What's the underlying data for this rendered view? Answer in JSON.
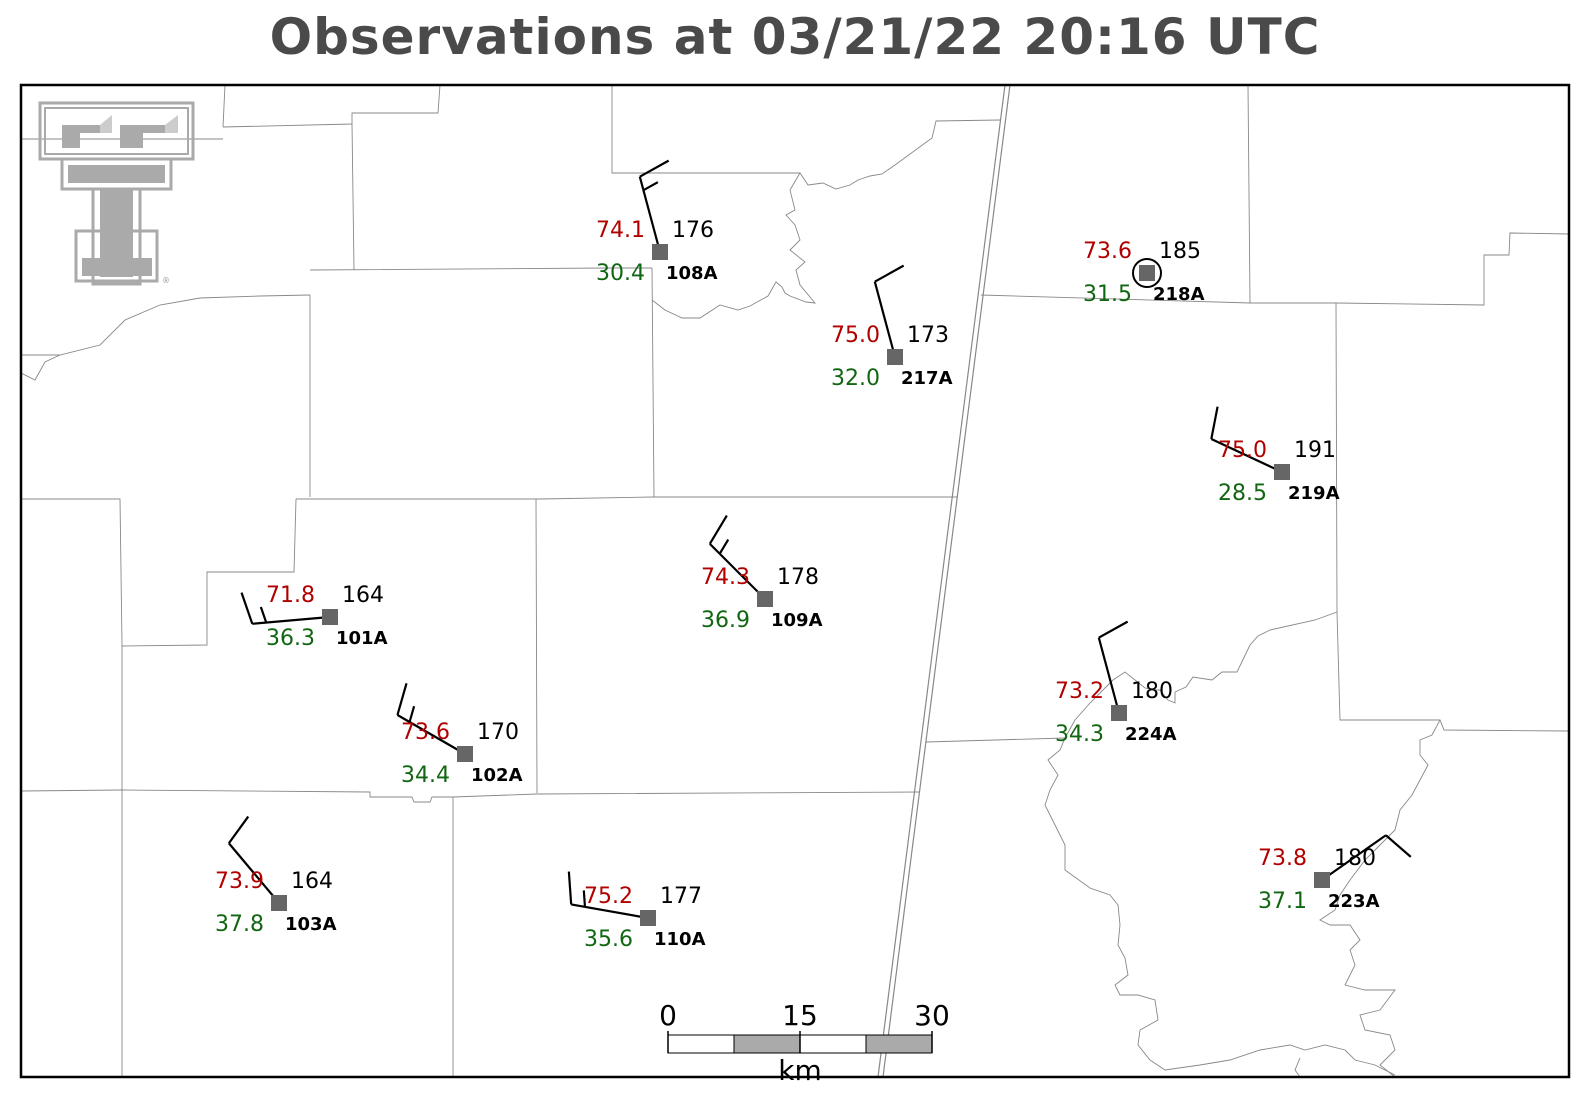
{
  "title": "Observations at 03/21/22 20:16 UTC",
  "logo": {
    "mark": "double-T",
    "registered": "®"
  },
  "colors": {
    "temperature": "#b00000",
    "dewpoint": "#116611",
    "station": "#666666",
    "border": "#888888"
  },
  "stations": [
    {
      "id": "108A",
      "temp": "74.1",
      "dew": "30.4",
      "pres": "176",
      "calm": false,
      "wind_dir_deg": 345,
      "wind_speed_kt": 15
    },
    {
      "id": "218A",
      "temp": "73.6",
      "dew": "31.5",
      "pres": "185",
      "calm": true
    },
    {
      "id": "217A",
      "temp": "75.0",
      "dew": "32.0",
      "pres": "173",
      "calm": false,
      "wind_dir_deg": 345,
      "wind_speed_kt": 10
    },
    {
      "id": "219A",
      "temp": "75.0",
      "dew": "28.5",
      "pres": "191",
      "calm": false,
      "wind_dir_deg": 295,
      "wind_speed_kt": 10
    },
    {
      "id": "101A",
      "temp": "71.8",
      "dew": "36.3",
      "pres": "164",
      "calm": false,
      "wind_dir_deg": 265,
      "wind_speed_kt": 15
    },
    {
      "id": "109A",
      "temp": "74.3",
      "dew": "36.9",
      "pres": "178",
      "calm": false,
      "wind_dir_deg": 315,
      "wind_speed_kt": 15
    },
    {
      "id": "102A",
      "temp": "73.6",
      "dew": "34.4",
      "pres": "170",
      "calm": false,
      "wind_dir_deg": 300,
      "wind_speed_kt": 15
    },
    {
      "id": "224A",
      "temp": "73.2",
      "dew": "34.3",
      "pres": "180",
      "calm": false,
      "wind_dir_deg": 345,
      "wind_speed_kt": 10
    },
    {
      "id": "103A",
      "temp": "73.9",
      "dew": "37.8",
      "pres": "164",
      "calm": false,
      "wind_dir_deg": 320,
      "wind_speed_kt": 10
    },
    {
      "id": "110A",
      "temp": "75.2",
      "dew": "35.6",
      "pres": "177",
      "calm": false,
      "wind_dir_deg": 280,
      "wind_speed_kt": 15
    },
    {
      "id": "223A",
      "temp": "73.8",
      "dew": "37.1",
      "pres": "180",
      "calm": false,
      "wind_dir_deg": 55,
      "wind_speed_kt": 10
    }
  ],
  "scale_bar": {
    "labels": [
      "0",
      "15",
      "30"
    ],
    "unit": "km"
  }
}
